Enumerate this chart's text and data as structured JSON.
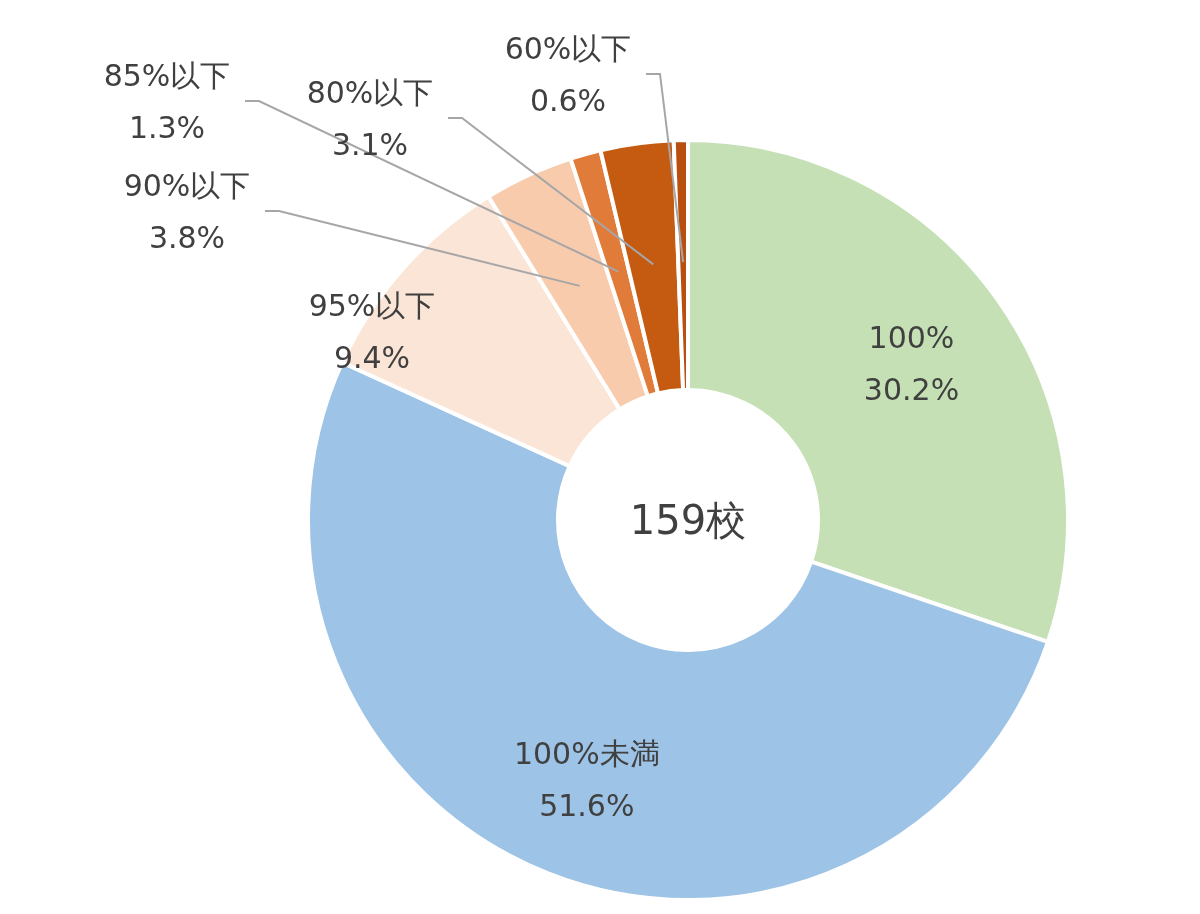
{
  "chart_data": {
    "type": "donut",
    "categories": [
      "100%",
      "100%未満",
      "95%以下",
      "90%以下",
      "85%以下",
      "80%以下",
      "60%以下"
    ],
    "values": [
      30.2,
      51.6,
      9.4,
      3.8,
      1.3,
      3.1,
      0.6
    ],
    "value_labels": [
      "30.2%",
      "51.6%",
      "9.4%",
      "3.8%",
      "1.3%",
      "3.1%",
      "0.6%"
    ],
    "colors": [
      "#c5e0b4",
      "#9dc3e6",
      "#fbe5d6",
      "#f8cbad",
      "#e07b39",
      "#c55a11",
      "#b84f0f"
    ],
    "annotations": [
      "159校"
    ]
  }
}
